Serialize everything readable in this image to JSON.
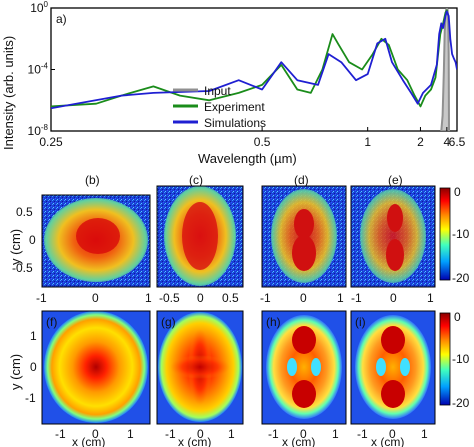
{
  "figure": {
    "panel_a_tag": "a)",
    "map_tags": [
      "(b)",
      "(c)",
      "(d)",
      "(e)",
      "(f)",
      "(g)",
      "(h)",
      "(i)"
    ]
  },
  "colors": {
    "input": "#909090",
    "experiment": "#1a8c1a",
    "simulations": "#1f1fd2"
  },
  "chart_data": [
    {
      "type": "line",
      "panel": "a",
      "title": "",
      "xlabel": "Wavelength (µm)",
      "ylabel": "Intensity (arb. units)",
      "x_scale": "reciprocal",
      "y_scale": "log",
      "xlim": [
        0.25,
        6.5
      ],
      "ylim": [
        1e-08,
        1
      ],
      "x_ticks": [
        "0.25",
        "0.5",
        "1",
        "2",
        "4",
        "6.5"
      ],
      "y_ticks": [
        "10^0",
        "10^-4",
        "10^-8"
      ],
      "legend_position": "bottom-center",
      "series": [
        {
          "name": "Input",
          "color": "#909090",
          "points": [
            [
              3.3,
              1e-08
            ],
            [
              3.45,
              1e-07
            ],
            [
              3.6,
              0.0001
            ],
            [
              3.7,
              0.03
            ],
            [
              3.8,
              0.3
            ],
            [
              3.9,
              0.8
            ],
            [
              4.0,
              0.95
            ],
            [
              4.1,
              0.85
            ],
            [
              4.2,
              0.3
            ],
            [
              4.3,
              0.001
            ],
            [
              4.35,
              1e-08
            ]
          ]
        },
        {
          "name": "Experiment",
          "color": "#1a8c1a",
          "points": [
            [
              0.25,
              4e-07
            ],
            [
              0.28,
              6e-07
            ],
            [
              0.3,
              2e-06
            ],
            [
              0.33,
              8e-06
            ],
            [
              0.36,
              2e-06
            ],
            [
              0.4,
              1e-06
            ],
            [
              0.45,
              3e-06
            ],
            [
              0.5,
              1e-05
            ],
            [
              0.55,
              0.0002
            ],
            [
              0.6,
              5e-06
            ],
            [
              0.65,
              3e-06
            ],
            [
              0.7,
              0.0001
            ],
            [
              0.75,
              0.02
            ],
            [
              0.78,
              0.005
            ],
            [
              0.85,
              0.0003
            ],
            [
              0.95,
              0.0001
            ],
            [
              1.05,
              0.001
            ],
            [
              1.15,
              0.01
            ],
            [
              1.25,
              0.004
            ],
            [
              1.4,
              0.0001
            ],
            [
              1.6,
              2e-05
            ],
            [
              1.8,
              2e-06
            ],
            [
              2.0,
              4e-07
            ],
            [
              2.2,
              2e-06
            ],
            [
              2.5,
              5e-06
            ],
            [
              2.8,
              3e-05
            ],
            [
              3.0,
              0.001
            ],
            [
              3.2,
              0.02
            ],
            [
              3.5,
              0.1
            ],
            [
              3.8,
              0.5
            ],
            [
              4.0,
              0.7
            ],
            [
              4.1,
              0.6
            ]
          ]
        },
        {
          "name": "Simulations",
          "color": "#1f1fd2",
          "points": [
            [
              0.25,
              3e-07
            ],
            [
              0.3,
              2e-06
            ],
            [
              0.33,
              3e-06
            ],
            [
              0.4,
              4e-06
            ],
            [
              0.45,
              2e-05
            ],
            [
              0.5,
              5e-06
            ],
            [
              0.55,
              0.0003
            ],
            [
              0.6,
              2e-05
            ],
            [
              0.68,
              1e-05
            ],
            [
              0.73,
              0.001
            ],
            [
              0.8,
              0.0003
            ],
            [
              0.9,
              2e-05
            ],
            [
              1.0,
              5e-05
            ],
            [
              1.1,
              0.005
            ],
            [
              1.2,
              0.01
            ],
            [
              1.3,
              0.0003
            ],
            [
              1.5,
              2e-05
            ],
            [
              1.7,
              3e-06
            ],
            [
              1.9,
              6e-07
            ],
            [
              2.1,
              3e-06
            ],
            [
              2.5,
              1e-05
            ],
            [
              2.9,
              0.0002
            ],
            [
              3.1,
              0.02
            ],
            [
              3.3,
              0.1
            ],
            [
              3.5,
              0.05
            ],
            [
              3.8,
              0.3
            ],
            [
              4.0,
              0.6
            ],
            [
              4.3,
              0.3
            ],
            [
              4.6,
              0.01
            ],
            [
              5.0,
              0.001
            ],
            [
              5.5,
              0.0005
            ],
            [
              6.0,
              0.0003
            ],
            [
              6.5,
              0.0001
            ]
          ]
        }
      ]
    },
    {
      "type": "heatmap",
      "panels": [
        "b",
        "c",
        "d",
        "e"
      ],
      "row": "experiment",
      "ylabel": "y (cm)",
      "y_ticks": [
        "0.5",
        "0",
        "-0.5"
      ],
      "x_ticks_b": [
        "-1",
        "0",
        "1"
      ],
      "x_ticks_c": [
        "-0.5",
        "0",
        "0.5"
      ],
      "x_ticks_d": [
        "-1",
        "0",
        "1"
      ],
      "x_ticks_e": [
        "-1",
        "0",
        "1"
      ],
      "colorbar_ticks": [
        "0",
        "-10",
        "-20"
      ]
    },
    {
      "type": "heatmap",
      "panels": [
        "f",
        "g",
        "h",
        "i"
      ],
      "row": "simulation",
      "xlabel": "x (cm)",
      "ylabel": "y (cm)",
      "y_ticks": [
        "1",
        "0",
        "-1"
      ],
      "x_ticks": [
        "-1",
        "0",
        "1"
      ],
      "colorbar_ticks": [
        "0",
        "-10",
        "-20"
      ]
    }
  ]
}
